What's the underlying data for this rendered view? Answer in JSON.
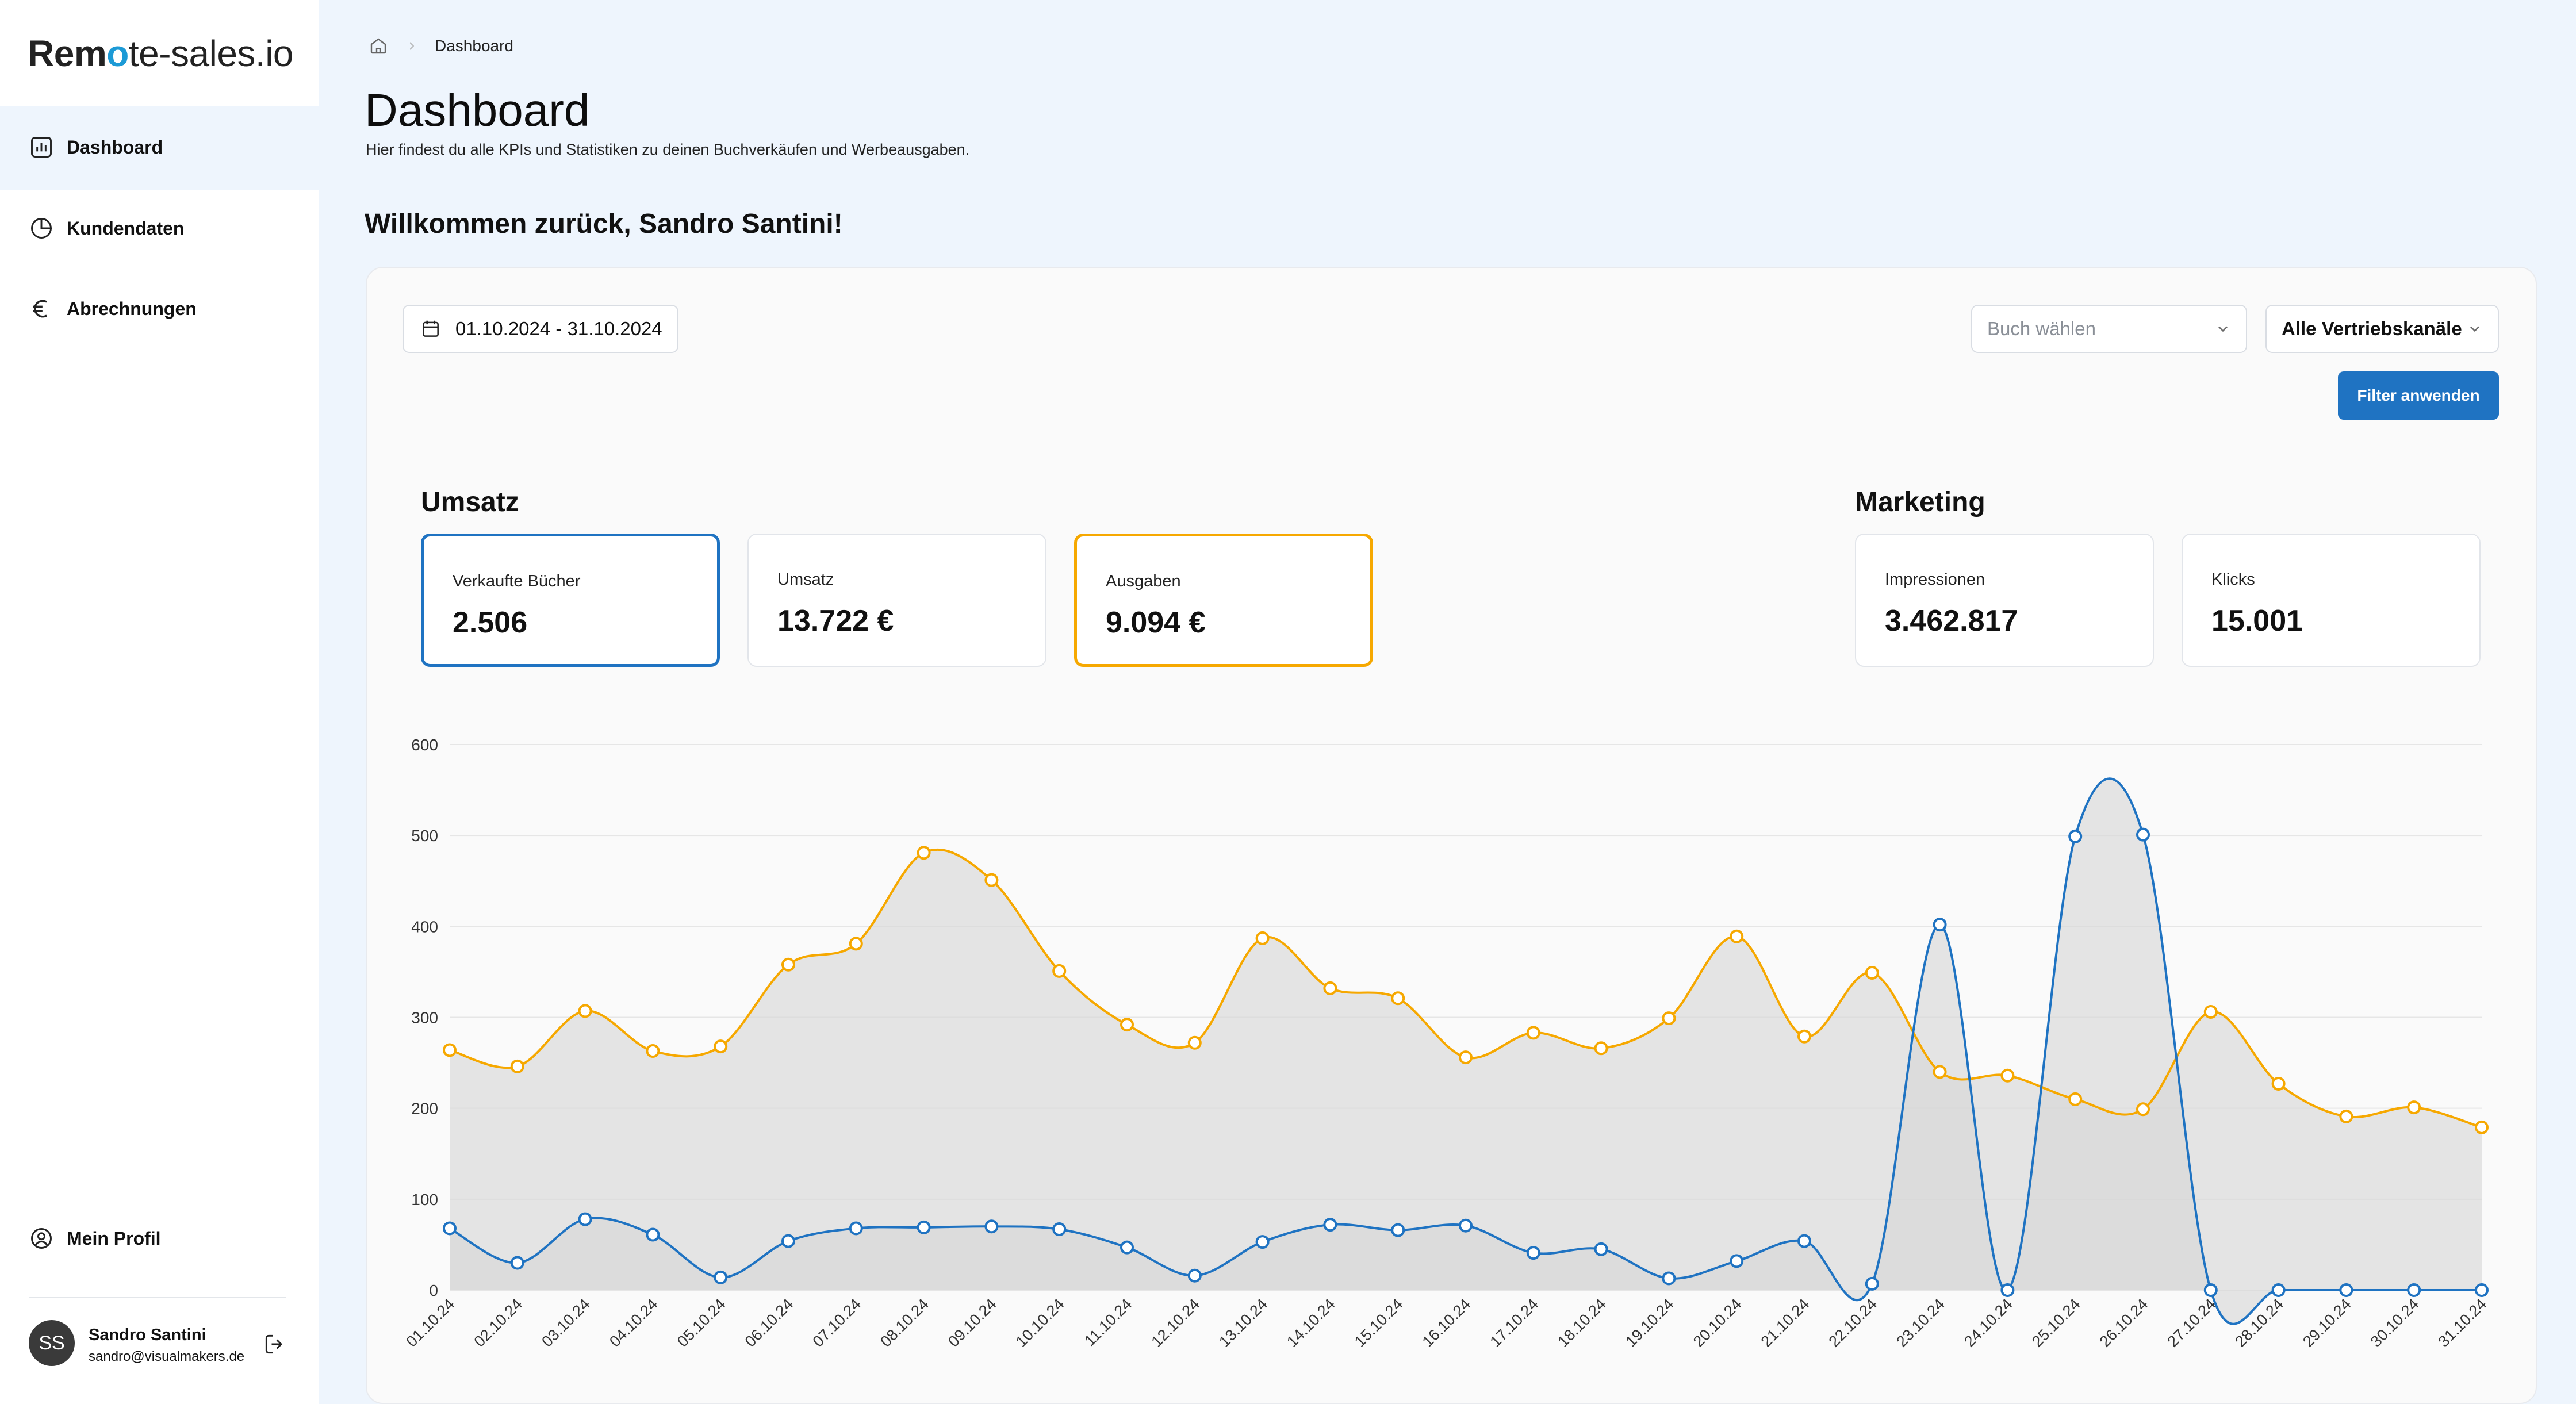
{
  "app": {
    "logo_part1": "Rem",
    "logo_part2": "o",
    "logo_part3": "te-sales.io"
  },
  "sidebar": {
    "items": [
      {
        "label": "Dashboard",
        "icon": "bar-chart-icon"
      },
      {
        "label": "Kundendaten",
        "icon": "pie-chart-icon"
      },
      {
        "label": "Abrechnungen",
        "icon": "euro-icon"
      }
    ],
    "profile_link": "Mein Profil",
    "user": {
      "initials": "SS",
      "name": "Sandro Santini",
      "email": "sandro@visualmakers.de"
    }
  },
  "header": {
    "breadcrumb_current": "Dashboard",
    "title": "Dashboard",
    "subtitle": "Hier findest du alle KPIs und Statistiken zu deinen Buchverkäufen und Werbeausgaben.",
    "welcome": "Willkommen zurück, Sandro Santini!"
  },
  "filters": {
    "date_range": "01.10.2024 - 31.10.2024",
    "book_placeholder": "Buch wählen",
    "channel_value": "Alle Vertriebskanäle",
    "apply_label": "Filter anwenden"
  },
  "umsatz": {
    "title": "Umsatz",
    "cards": [
      {
        "label": "Verkaufte Bücher",
        "value": "2.506"
      },
      {
        "label": "Umsatz",
        "value": "13.722 €"
      },
      {
        "label": "Ausgaben",
        "value": "9.094 €"
      }
    ]
  },
  "marketing": {
    "title": "Marketing",
    "cards": [
      {
        "label": "Impressionen",
        "value": "3.462.817"
      },
      {
        "label": "Klicks",
        "value": "15.001"
      }
    ]
  },
  "colors": {
    "blue": "#1f73c2",
    "orange": "#f6a800",
    "area": "#d6d6d6"
  },
  "chart_data": {
    "type": "area",
    "ylim": [
      0,
      600
    ],
    "yticks": [
      0,
      100,
      200,
      300,
      400,
      500,
      600
    ],
    "categories": [
      "01.10.24",
      "02.10.24",
      "03.10.24",
      "04.10.24",
      "05.10.24",
      "06.10.24",
      "07.10.24",
      "08.10.24",
      "09.10.24",
      "10.10.24",
      "11.10.24",
      "12.10.24",
      "13.10.24",
      "14.10.24",
      "15.10.24",
      "16.10.24",
      "17.10.24",
      "18.10.24",
      "19.10.24",
      "20.10.24",
      "21.10.24",
      "22.10.24",
      "23.10.24",
      "24.10.24",
      "25.10.24",
      "26.10.24",
      "27.10.24",
      "28.10.24",
      "29.10.24",
      "30.10.24",
      "31.10.24"
    ],
    "series": [
      {
        "color": "#f6a800",
        "values": [
          264,
          246,
          307,
          263,
          268,
          358,
          381,
          481,
          451,
          351,
          292,
          272,
          387,
          332,
          321,
          256,
          283,
          266,
          299,
          389,
          279,
          349,
          240,
          236,
          210,
          199,
          306,
          227,
          191,
          201,
          179
        ]
      },
      {
        "color": "#1f73c2",
        "values": [
          68,
          30,
          78,
          61,
          14,
          54,
          68,
          69,
          70,
          67,
          47,
          16,
          53,
          72,
          66,
          71,
          41,
          45,
          13,
          32,
          54,
          7,
          402,
          0,
          499,
          501,
          0,
          0,
          0,
          0,
          0
        ]
      }
    ]
  }
}
